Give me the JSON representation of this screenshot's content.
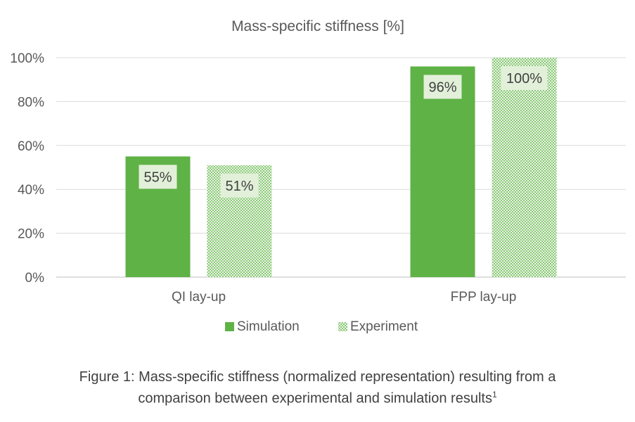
{
  "chart_data": {
    "type": "bar",
    "title": "Mass-specific stiffness [%]",
    "xlabel": "",
    "ylabel": "",
    "categories": [
      "QI lay-up",
      "FPP lay-up"
    ],
    "series": [
      {
        "name": "Simulation",
        "values": [
          55,
          96
        ],
        "labels": [
          "55%",
          "96%"
        ],
        "fill": "solid",
        "color": "#5fb246"
      },
      {
        "name": "Experiment",
        "values": [
          51,
          100
        ],
        "labels": [
          "51%",
          "100%"
        ],
        "fill": "dotted",
        "color": "#8fcf7c"
      }
    ],
    "ylim": [
      0,
      100
    ],
    "yticks": [
      0,
      20,
      40,
      60,
      80,
      100
    ],
    "ytick_labels": [
      "0%",
      "20%",
      "40%",
      "60%",
      "80%",
      "100%"
    ],
    "grid": true,
    "legend_position": "bottom"
  },
  "caption": {
    "text": "Figure 1: Mass-specific stiffness (normalized representation) resulting from a",
    "text_line2": "comparison between experimental and simulation results",
    "superscript": "1"
  }
}
